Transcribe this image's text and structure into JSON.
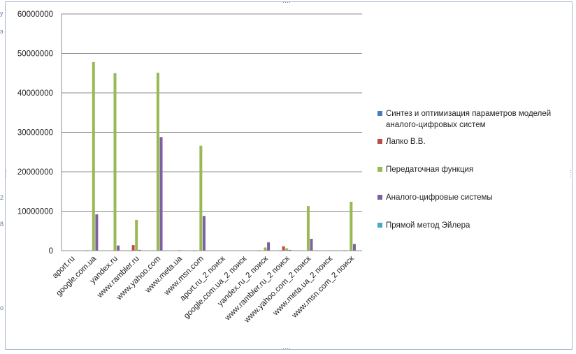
{
  "chart_data": {
    "type": "bar",
    "categories": [
      "aport.ru",
      "google.com.ua",
      "yandex.ru",
      "www.rambler.ru",
      "www.yahoo.com",
      "www.meta.ua",
      "www.msn.com",
      "aport.ru_2 поиск",
      "google.com.ua_2 поиск",
      "yandex.ru_2 поиск",
      "www.rambler.ru_2 поиск",
      "www.yahoo.com_2 поиск",
      "www.meta.ua_2 поиск",
      "www.msn.com_2 поиск"
    ],
    "series": [
      {
        "name": "Синтез и оптимизация параметров моделей аналого-цифровых систем",
        "color": "#4a7ebb",
        "values": [
          0,
          15000,
          0,
          40000,
          60000,
          0,
          10000,
          0,
          0,
          15000,
          15000,
          40000,
          0,
          10000
        ]
      },
      {
        "name": "Лапко В.В.",
        "color": "#be4b48",
        "values": [
          0,
          0,
          0,
          1400000,
          0,
          0,
          0,
          0,
          0,
          0,
          1100000,
          0,
          0,
          0
        ]
      },
      {
        "name": "Передаточная функция",
        "color": "#98b954",
        "values": [
          0,
          47800000,
          45000000,
          7800000,
          45100000,
          150000,
          26600000,
          0,
          0,
          800000,
          600000,
          11300000,
          100000,
          12400000
        ]
      },
      {
        "name": "Аналого-цифровые системы",
        "color": "#7d60a0",
        "values": [
          0,
          9200000,
          1300000,
          200000,
          28800000,
          0,
          8800000,
          0,
          0,
          2100000,
          200000,
          3000000,
          0,
          1700000
        ]
      },
      {
        "name": "Прямой метод Эйлера",
        "color": "#46aac5",
        "values": [
          0,
          0,
          0,
          0,
          0,
          0,
          0,
          0,
          0,
          0,
          0,
          0,
          0,
          0
        ]
      }
    ],
    "yticks": [
      "0",
      "10000000",
      "20000000",
      "30000000",
      "40000000",
      "50000000",
      "60000000"
    ],
    "ylim": [
      0,
      60000000
    ],
    "grid": true,
    "legend_position": "right"
  },
  "sheet": {
    "left_chars": [
      "у",
      "э",
      "",
      "",
      "",
      "",
      "",
      "",
      "2",
      "8",
      "",
      "",
      "",
      "",
      "о",
      ""
    ]
  }
}
